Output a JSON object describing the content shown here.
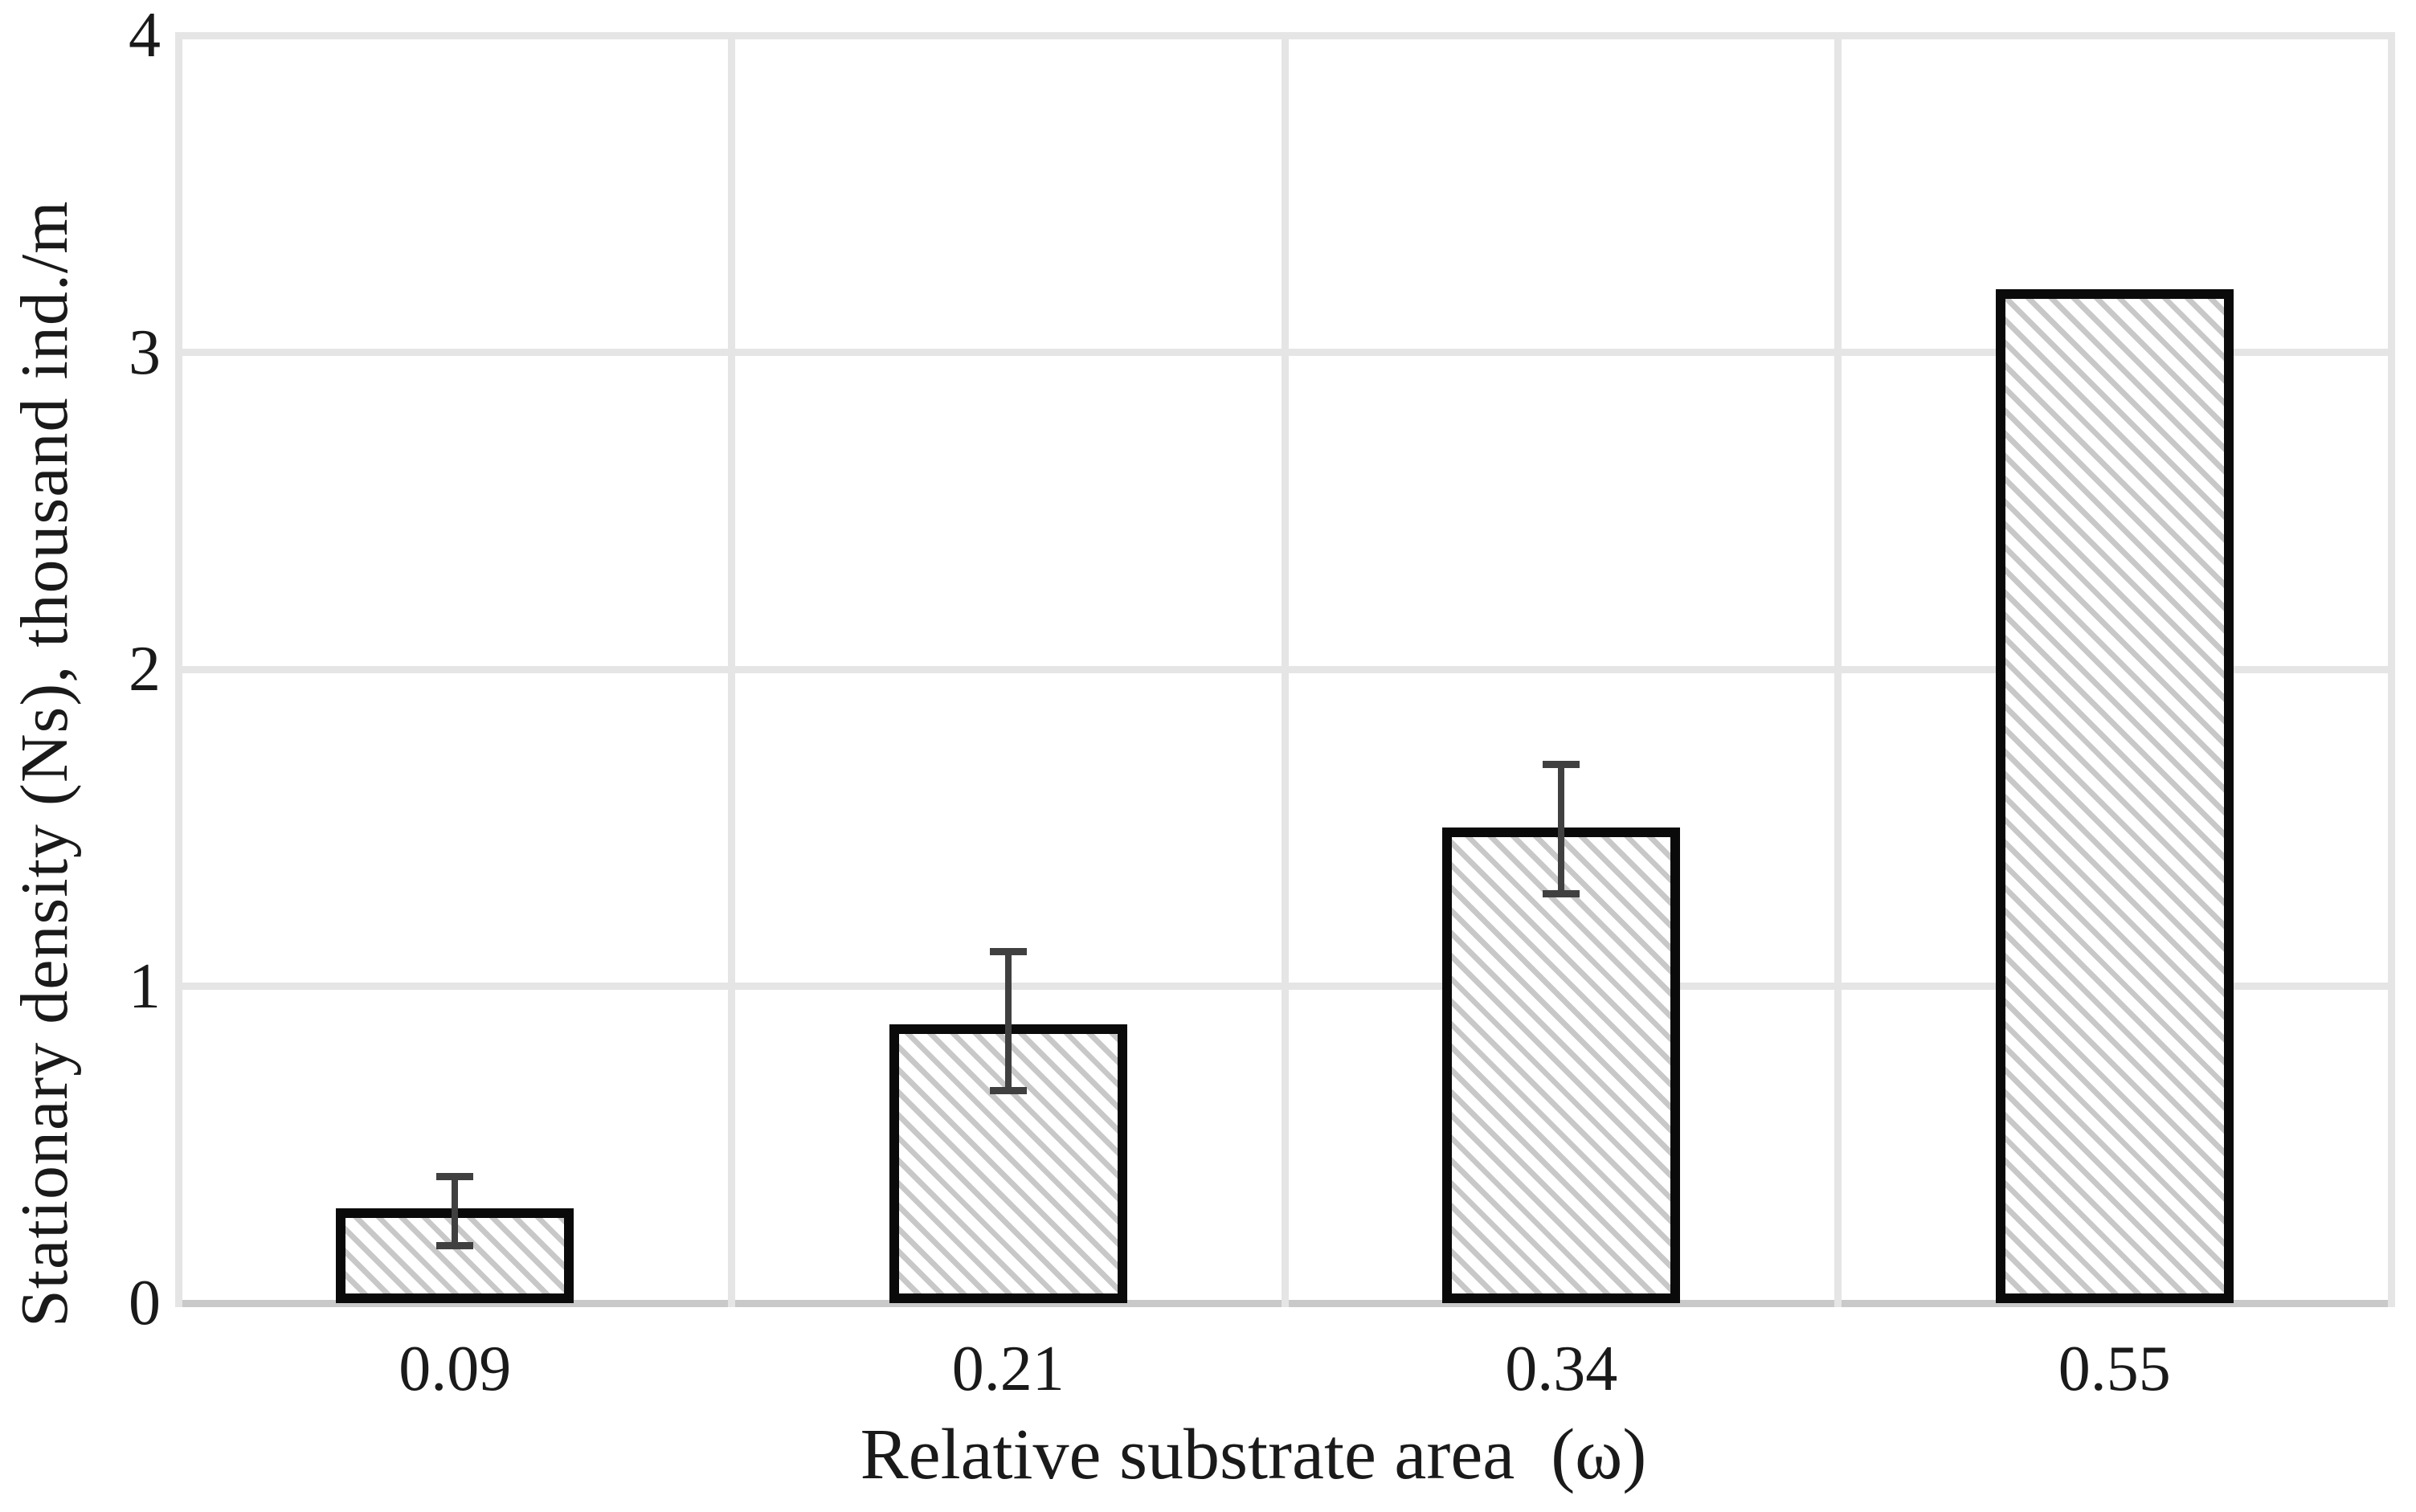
{
  "chart_data": {
    "type": "bar",
    "title": "",
    "xlabel": "Relative substrate area  (ω)",
    "ylabel": "Stationary density (Ns), thousand ind./m",
    "categories": [
      "0.09",
      "0.21",
      "0.34",
      "0.55"
    ],
    "values": [
      0.3,
      0.88,
      1.5,
      3.2
    ],
    "error_bars": [
      {
        "low": 0.17,
        "high": 0.41
      },
      {
        "low": 0.66,
        "high": 1.12
      },
      {
        "low": 1.28,
        "high": 1.71
      },
      null
    ],
    "ylim": [
      0,
      4
    ],
    "yticks": [
      0,
      1,
      2,
      3,
      4
    ],
    "grid": true,
    "legend": "none",
    "styles": {
      "bar_fill": "diagonal-hatch",
      "bar_border_color": "#0a0a0a",
      "hatch_color": "#c8c8c8",
      "grid_color": "#e5e5e5",
      "axis_line_color": "#c9c9c9",
      "error_bar_color": "#404040",
      "text_color": "#1a1a1a",
      "background": "#ffffff"
    }
  }
}
